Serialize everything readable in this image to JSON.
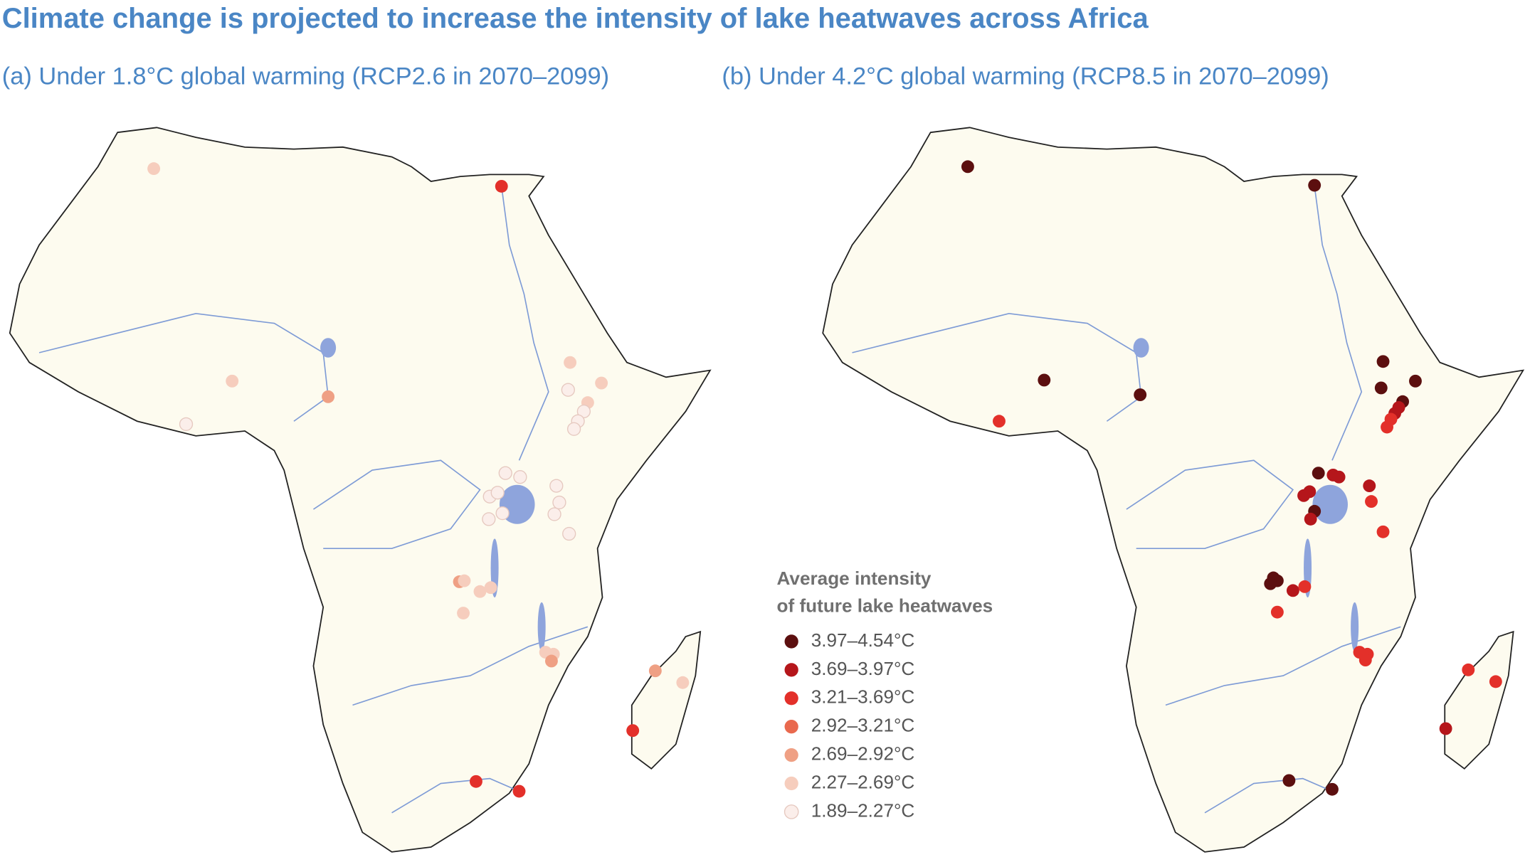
{
  "title": "Climate change is projected to increase the intensity of lake heatwaves across Africa",
  "panels": [
    {
      "subtitle": "(a) Under 1.8°C global warming (RCP2.6 in 2070–2099)"
    },
    {
      "subtitle": "(b) Under 4.2°C global warming (RCP8.5 in 2070–2099)"
    }
  ],
  "legend": {
    "title_lines": [
      "Average intensity",
      "of future lake heatwaves"
    ],
    "items": [
      {
        "label": "3.97–4.54°C",
        "color": "#5c0f0f"
      },
      {
        "label": "3.69–3.97°C",
        "color": "#b5161b"
      },
      {
        "label": "3.21–3.69°C",
        "color": "#e3302a"
      },
      {
        "label": "2.92–3.21°C",
        "color": "#e9694e"
      },
      {
        "label": "2.69–2.92°C",
        "color": "#efa084"
      },
      {
        "label": "2.27–2.69°C",
        "color": "#f6cdbd"
      },
      {
        "label": "1.89–2.27°C",
        "color": "#fbeeea"
      }
    ]
  }
}
